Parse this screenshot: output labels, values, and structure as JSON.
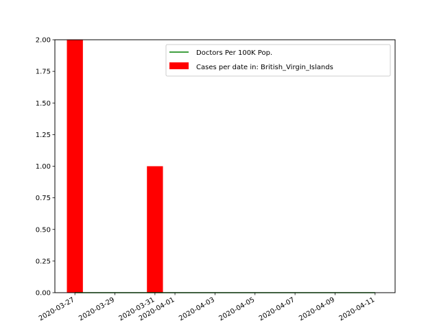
{
  "chart_data": {
    "type": "bar",
    "title": "",
    "xlabel": "",
    "ylabel": "",
    "x_ticks": [
      "2020-03-27",
      "2020-03-29",
      "2020-03-31",
      "2020-04-01",
      "2020-04-03",
      "2020-04-05",
      "2020-04-07",
      "2020-04-09",
      "2020-04-11"
    ],
    "y_ticks": [
      "0.00",
      "0.25",
      "0.50",
      "0.75",
      "1.00",
      "1.25",
      "1.50",
      "1.75",
      "2.00"
    ],
    "ylim": [
      0,
      2.0
    ],
    "xlim": [
      "2020-03-26",
      "2020-04-12"
    ],
    "legend_position": "top-right",
    "grid": false,
    "series": [
      {
        "name": "Cases per date in: British_Virgin_Islands",
        "type": "bar",
        "color": "#ff0000",
        "points": [
          {
            "x": "2020-03-27",
            "y": 2
          },
          {
            "x": "2020-03-31",
            "y": 1
          }
        ]
      },
      {
        "name": "Doctors Per 100K Pop.",
        "type": "line",
        "color": "#008000",
        "points": [
          {
            "x": "2020-03-27",
            "y": 0
          },
          {
            "x": "2020-04-11",
            "y": 0
          }
        ]
      }
    ]
  }
}
